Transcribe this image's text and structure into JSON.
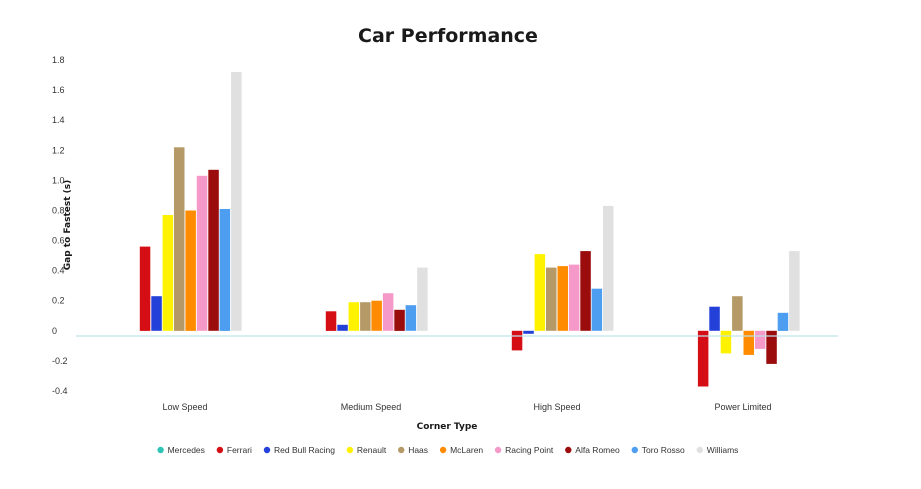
{
  "chart_data": {
    "type": "bar",
    "title": "Car Performance",
    "xlabel": "Corner Type",
    "ylabel": "Gap to Fastest (s)",
    "ylim": [
      -0.4,
      1.8
    ],
    "yticks": [
      "1.8",
      "1.6",
      "1.4",
      "1.2",
      "1.0",
      "0.8",
      "0.6",
      "0.4",
      "0.2",
      "0",
      "-0.2",
      "-0.4"
    ],
    "ytick_values": [
      1.8,
      1.6,
      1.4,
      1.2,
      1.0,
      0.8,
      0.6,
      0.4,
      0.2,
      0,
      -0.2,
      -0.4
    ],
    "categories": [
      "Low Speed",
      "Medium Speed",
      "High Speed",
      "Power Limited"
    ],
    "legend_position": "bottom",
    "series": [
      {
        "name": "Mercedes",
        "color": "#2ec4b6",
        "values": [
          0,
          0,
          0,
          0
        ]
      },
      {
        "name": "Ferrari",
        "color": "#d40e14",
        "values": [
          0.56,
          0.13,
          -0.13,
          -0.37
        ]
      },
      {
        "name": "Red Bull Racing",
        "color": "#2340d8",
        "values": [
          0.23,
          0.04,
          -0.02,
          0.16
        ]
      },
      {
        "name": "Renault",
        "color": "#fff200",
        "values": [
          0.77,
          0.19,
          0.51,
          -0.15
        ]
      },
      {
        "name": "Haas",
        "color": "#b59a68",
        "values": [
          1.22,
          0.19,
          0.42,
          0.23
        ]
      },
      {
        "name": "McLaren",
        "color": "#ff8c00",
        "values": [
          0.8,
          0.2,
          0.43,
          -0.16
        ]
      },
      {
        "name": "Racing Point",
        "color": "#f59ac8",
        "values": [
          1.03,
          0.25,
          0.44,
          -0.12
        ]
      },
      {
        "name": "Alfa Romeo",
        "color": "#9b0d0d",
        "values": [
          1.07,
          0.14,
          0.53,
          -0.22
        ]
      },
      {
        "name": "Toro Rosso",
        "color": "#4d9df0",
        "values": [
          0.81,
          0.17,
          0.28,
          0.12
        ]
      },
      {
        "name": "Williams",
        "color": "#e0e0e0",
        "values": [
          1.72,
          0.42,
          0.83,
          0.53
        ]
      }
    ]
  }
}
